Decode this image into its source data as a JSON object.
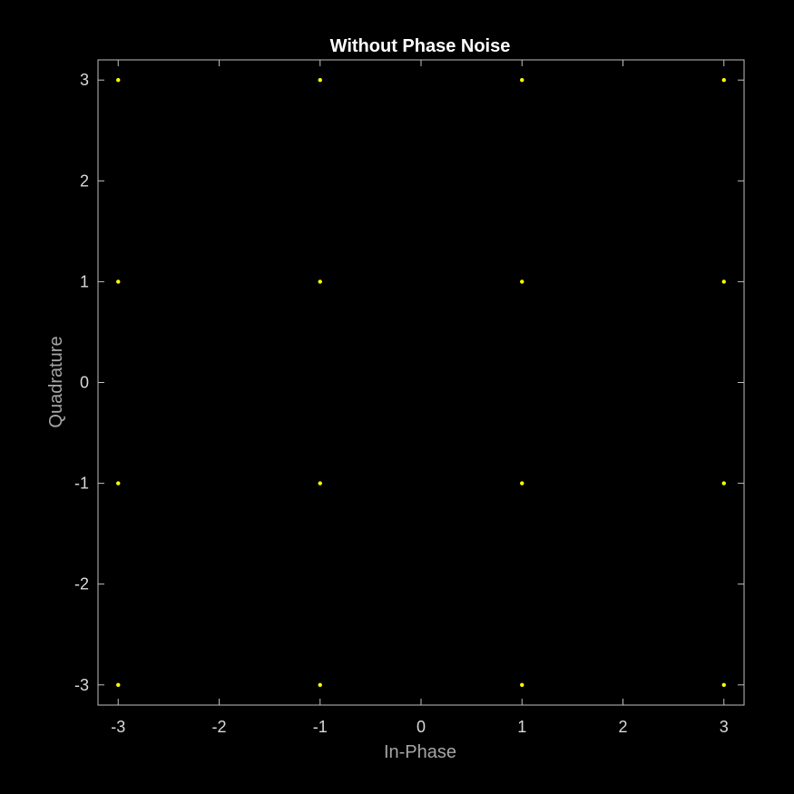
{
  "chart_data": {
    "type": "scatter",
    "title": "Without Phase Noise",
    "xlabel": "In-Phase",
    "ylabel": "Quadrature",
    "xlim": [
      -3.2,
      3.2
    ],
    "ylim": [
      -3.2,
      3.2
    ],
    "xticks": [
      -3,
      -2,
      -1,
      0,
      1,
      2,
      3
    ],
    "yticks": [
      -3,
      -2,
      -1,
      0,
      1,
      2,
      3
    ],
    "grid": false,
    "series": [
      {
        "points": [
          [
            -3,
            3
          ],
          [
            -1,
            3
          ],
          [
            1,
            3
          ],
          [
            3,
            3
          ],
          [
            -3,
            1
          ],
          [
            -1,
            1
          ],
          [
            1,
            1
          ],
          [
            3,
            1
          ],
          [
            -3,
            -1
          ],
          [
            -1,
            -1
          ],
          [
            1,
            -1
          ],
          [
            3,
            -1
          ],
          [
            -3,
            -3
          ],
          [
            -1,
            -3
          ],
          [
            1,
            -3
          ],
          [
            3,
            -3
          ]
        ]
      }
    ]
  },
  "colors": {
    "background": "#000000",
    "axes": "#bfbfbf",
    "tick_text": "#d9d9d9",
    "label_text": "#a6a6a6",
    "title_text": "#ffffff",
    "marker": "#ffff00"
  }
}
